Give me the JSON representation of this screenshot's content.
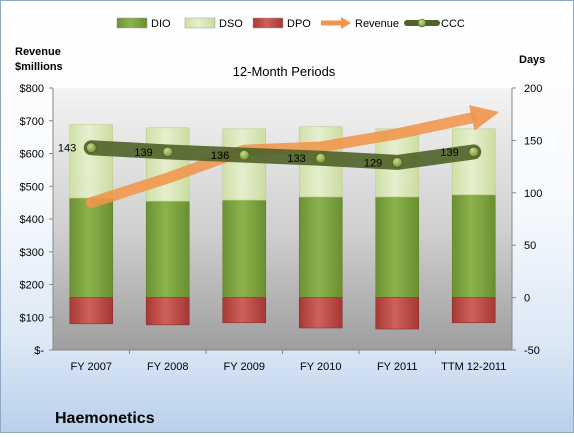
{
  "chart_data": {
    "type": "bar",
    "title": "12-Month Periods",
    "company": "Haemonetics",
    "left_axis_title": "Revenue\n$millions",
    "right_axis_title": "Days",
    "categories": [
      "FY 2007",
      "FY 2008",
      "FY 2009",
      "FY 2010",
      "FY 2011",
      "TTM 12-2011"
    ],
    "left_axis": {
      "min": 0,
      "max": 800,
      "step": 100,
      "tick_labels": [
        "$-",
        "$100",
        "$200",
        "$300",
        "$400",
        "$500",
        "$600",
        "$700",
        "$800"
      ]
    },
    "right_axis": {
      "min": -50,
      "max": 200,
      "step": 50,
      "tick_labels": [
        "-50",
        "0",
        "50",
        "100",
        "150",
        "200"
      ]
    },
    "series": [
      {
        "name": "DIO",
        "axis": "right",
        "kind": "stacked-bar",
        "color": "#77a038",
        "values": [
          95,
          92,
          93,
          96,
          96,
          98
        ]
      },
      {
        "name": "DSO",
        "axis": "right",
        "kind": "stacked-bar",
        "color": "#d8e7b5",
        "values": [
          70,
          70,
          68,
          67,
          65,
          63
        ]
      },
      {
        "name": "DPO",
        "axis": "right",
        "kind": "negative-bar",
        "color": "#c0504d",
        "values": [
          -25,
          -26,
          -24,
          -29,
          -30,
          -24
        ]
      },
      {
        "name": "Revenue",
        "axis": "left",
        "kind": "arrow",
        "color": "#f0954b",
        "values": [
          450,
          525,
          610,
          620,
          660,
          710
        ]
      },
      {
        "name": "CCC",
        "axis": "right",
        "kind": "line",
        "color": "#4f6228",
        "values": [
          143,
          139,
          136,
          133,
          129,
          139
        ],
        "labels": [
          "143",
          "139",
          "136",
          "133",
          "129",
          "139"
        ]
      }
    ],
    "legend": {
      "position": "top",
      "entries": [
        "DIO",
        "DSO",
        "DPO",
        "Revenue",
        "CCC"
      ]
    },
    "plot_background": "#b2b2b2",
    "grid": false
  }
}
